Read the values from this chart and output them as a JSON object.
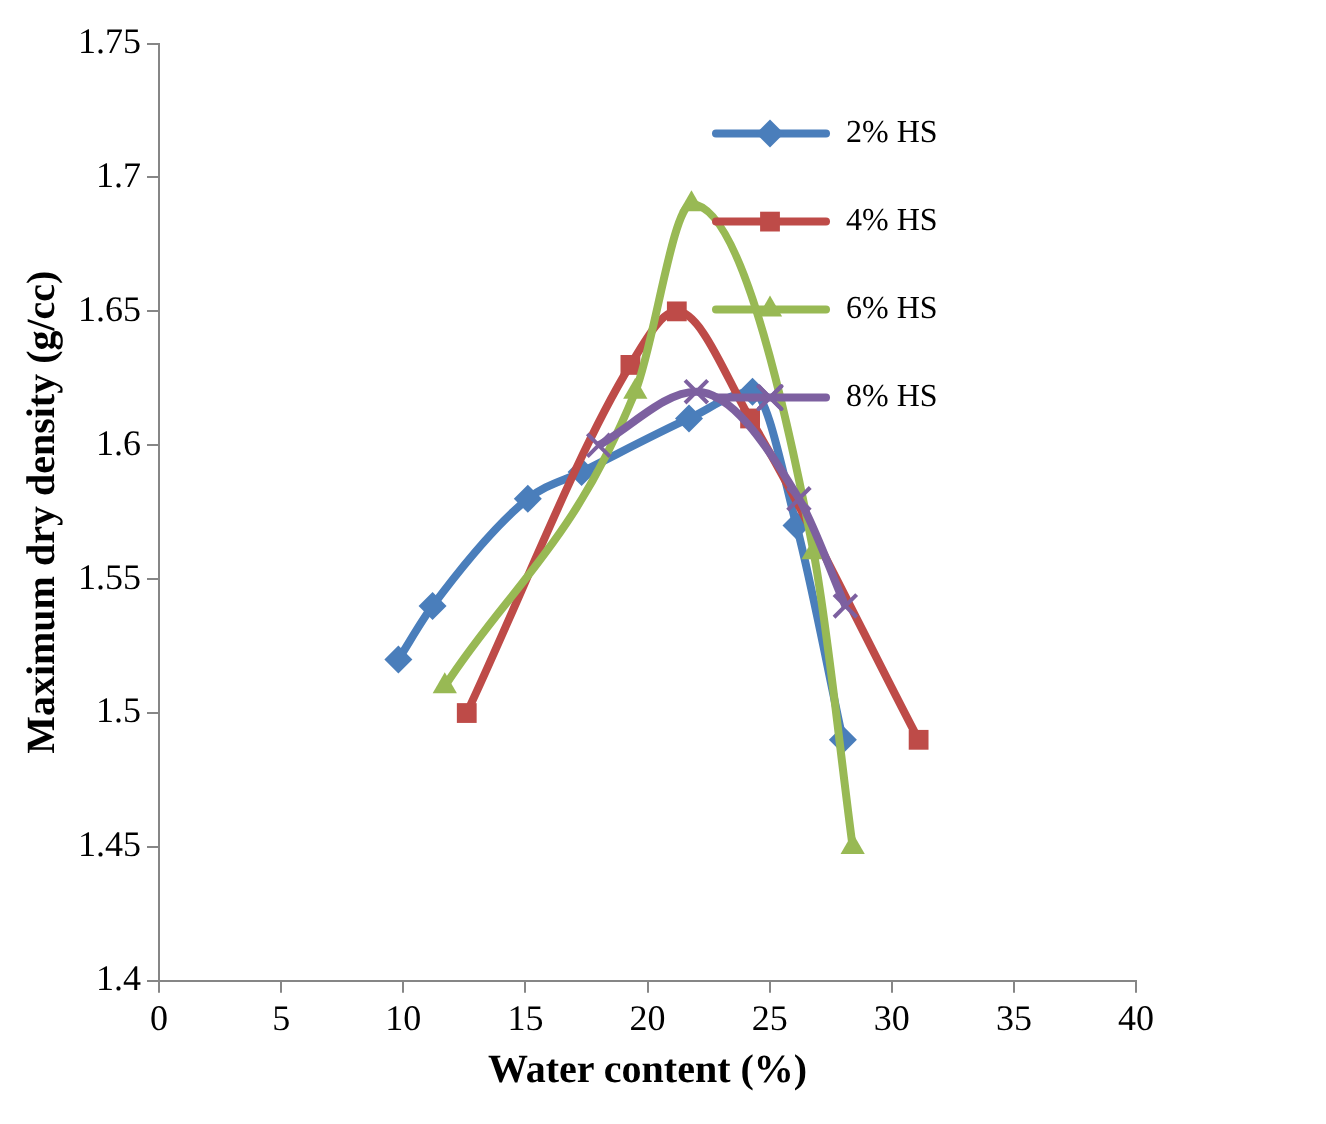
{
  "chart_data": {
    "type": "line",
    "xlabel": "Water content (%)",
    "ylabel": "Maximum dry density (g/cc)",
    "xlim": [
      0,
      40
    ],
    "xticks": [
      0,
      5,
      10,
      15,
      20,
      25,
      30,
      35,
      40
    ],
    "ylim": [
      1.4,
      1.75
    ],
    "yticks": [
      1.4,
      1.45,
      1.5,
      1.55,
      1.6,
      1.65,
      1.7,
      1.75
    ],
    "grid": false,
    "legend": "top right",
    "series": [
      {
        "name": "2% HS",
        "color": "#4a7ebb",
        "marker": "diamond",
        "x": [
          9.8,
          11.2,
          15.1,
          17.3,
          21.7,
          24.3,
          26.1,
          28
        ],
        "values": [
          1.52,
          1.54,
          1.58,
          1.59,
          1.61,
          1.62,
          1.57,
          1.49
        ]
      },
      {
        "name": "4% HS",
        "color": "#be4b48",
        "marker": "square",
        "x": [
          12.6,
          19.3,
          21.2,
          24.2,
          31.1
        ],
        "values": [
          1.5,
          1.63,
          1.65,
          1.61,
          1.49
        ]
      },
      {
        "name": "6% HS",
        "color": "#98b954",
        "marker": "triangle",
        "x": [
          11.7,
          19.5,
          21.8,
          26.8,
          28.4
        ],
        "values": [
          1.51,
          1.62,
          1.69,
          1.56,
          1.45
        ]
      },
      {
        "name": "8% HS",
        "color": "#7d60a0",
        "marker": "cross",
        "x": [
          18,
          22,
          26.2,
          28.1
        ],
        "values": [
          1.6,
          1.62,
          1.58,
          1.54
        ]
      }
    ]
  }
}
